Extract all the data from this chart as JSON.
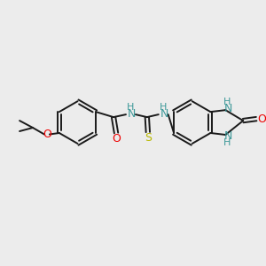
{
  "bg_color": "#ececec",
  "bond_color": "#1a1a1a",
  "N_color": "#3d9999",
  "O_color": "#ee0000",
  "S_color": "#b8b800",
  "figsize": [
    3.0,
    3.0
  ],
  "dpi": 100,
  "xlim": [
    0,
    300
  ],
  "ylim": [
    0,
    300
  ]
}
